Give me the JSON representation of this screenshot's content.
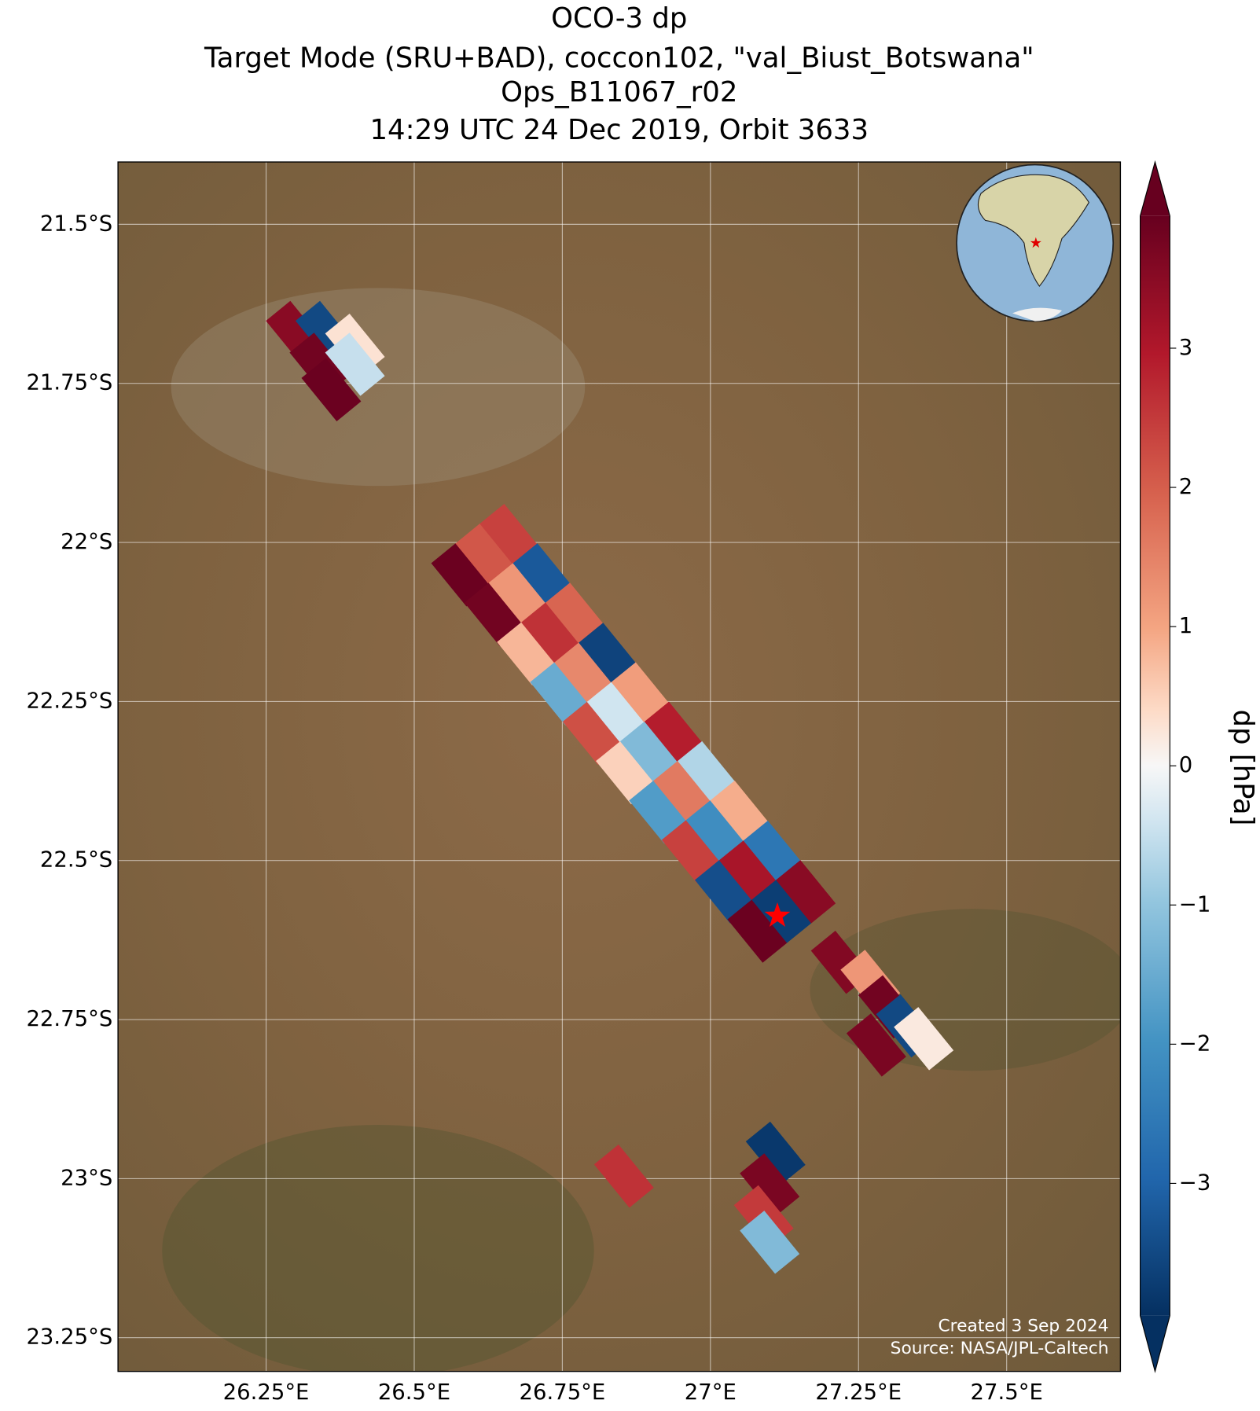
{
  "title": [
    "OCO-3 dp",
    "Target Mode (SRU+BAD), coccon102, \"val_Biust_Botswana\"",
    "Ops_B11067_r02",
    "14:29 UTC 24 Dec 2019, Orbit 3633"
  ],
  "map": {
    "xlim": [
      26.0,
      27.692
    ],
    "ylim": [
      -23.303,
      -21.402
    ],
    "grid": true,
    "xticks": [
      {
        "value": 26.25,
        "label": "26.25°E"
      },
      {
        "value": 26.5,
        "label": "26.5°E"
      },
      {
        "value": 26.75,
        "label": "26.75°E"
      },
      {
        "value": 27,
        "label": "27°E"
      },
      {
        "value": 27.25,
        "label": "27.25°E"
      },
      {
        "value": 27.5,
        "label": "27.5°E"
      }
    ],
    "yticks": [
      {
        "value": -21.5,
        "label": "21.5°S"
      },
      {
        "value": -21.75,
        "label": "21.75°S"
      },
      {
        "value": -22,
        "label": "22°S"
      },
      {
        "value": -22.25,
        "label": "22.25°S"
      },
      {
        "value": -22.5,
        "label": "22.5°S"
      },
      {
        "value": -22.75,
        "label": "22.75°S"
      },
      {
        "value": -23,
        "label": "23°S"
      },
      {
        "value": -23.25,
        "label": "23.25°S"
      }
    ]
  },
  "colorbar": {
    "label": "dp [hPa]",
    "colormap": "RdBu_r",
    "clim": [
      -3.95,
      3.95
    ],
    "ticks": [
      3,
      2,
      1,
      0,
      {
        "value": -1,
        "label": "−1"
      },
      {
        "value": -2,
        "label": "−2"
      },
      {
        "value": -3,
        "label": "−3"
      }
    ]
  },
  "footprints": {
    "lon": [
      26.579,
      26.62,
      26.661,
      26.635,
      26.676,
      26.717,
      26.69,
      26.731,
      26.772,
      26.746,
      26.787,
      26.828,
      26.801,
      26.842,
      26.883,
      26.857,
      26.898,
      26.939,
      26.913,
      26.954,
      26.995,
      26.968,
      27.009,
      27.05,
      27.024,
      27.065,
      27.106,
      27.079,
      27.12,
      27.161,
      26.3,
      26.35,
      26.4,
      26.34,
      26.4,
      26.36,
      27.22,
      27.27,
      27.3,
      27.33,
      27.36,
      27.28,
      27.11,
      27.1,
      27.09,
      27.1,
      26.854
    ],
    "lat": [
      -22.051,
      -22.02,
      -21.989,
      -22.113,
      -22.082,
      -22.051,
      -22.175,
      -22.144,
      -22.113,
      -22.238,
      -22.207,
      -22.176,
      -22.3,
      -22.269,
      -22.238,
      -22.362,
      -22.331,
      -22.3,
      -22.424,
      -22.393,
      -22.362,
      -22.486,
      -22.455,
      -22.424,
      -22.549,
      -22.518,
      -22.487,
      -22.611,
      -22.58,
      -22.549,
      -21.67,
      -21.67,
      -21.69,
      -21.72,
      -21.72,
      -21.76,
      -22.66,
      -22.69,
      -22.73,
      -22.76,
      -22.78,
      -22.79,
      -22.96,
      -23.01,
      -23.06,
      -23.1,
      -22.996
    ],
    "dp": [
      3.9,
      2.1,
      2.4,
      3.8,
      1.2,
      -3.2,
      0.8,
      2.6,
      1.9,
      -1.5,
      1.4,
      -3.6,
      2.2,
      -0.4,
      1.1,
      0.5,
      -1.2,
      2.9,
      -1.8,
      1.6,
      -0.7,
      2.4,
      -2.1,
      0.9,
      -3.4,
      3.1,
      -2.6,
      3.9,
      -3.7,
      3.5,
      3.5,
      -3.5,
      0.3,
      3.8,
      -0.5,
      3.9,
      3.6,
      1.2,
      3.8,
      -3.5,
      0.2,
      3.7,
      -3.8,
      3.7,
      2.5,
      -1.2,
      2.6
    ]
  },
  "site": {
    "lon": 27.113,
    "lat": -22.587,
    "color": "#ff0000"
  },
  "credits": [
    "Created 3 Sep 2024",
    "Source: NASA/JPL-Caltech"
  ]
}
